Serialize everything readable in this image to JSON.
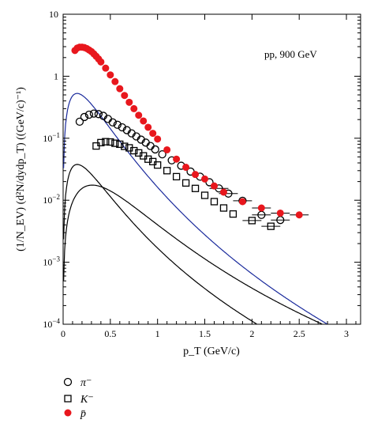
{
  "chart_data": {
    "type": "scatter",
    "annotation": "pp, 900 GeV",
    "xlabel": "p_T (GeV/c)",
    "ylabel": "(1/N_EV) (d²N/dydp_T) ((GeV/c)⁻¹)",
    "x_range": [
      0,
      3.15
    ],
    "y_range": [
      0.0001,
      10
    ],
    "y_scale": "log",
    "x_ticks": [
      "0",
      "0.5",
      "1",
      "1.5",
      "2",
      "2.5",
      "3"
    ],
    "x_tick_values": [
      0,
      0.5,
      1,
      1.5,
      2,
      2.5,
      3
    ],
    "y_tick_values": [
      0.0001,
      0.001,
      0.01,
      0.1,
      1,
      10
    ],
    "y_ticks": [
      {
        "base": "10",
        "exp": "−4"
      },
      {
        "base": "10",
        "exp": "−3"
      },
      {
        "base": "10",
        "exp": "−2"
      },
      {
        "base": "10",
        "exp": "−1"
      },
      {
        "base": "1",
        "exp": ""
      },
      {
        "base": "10",
        "exp": ""
      }
    ],
    "grid": false,
    "legend_position": "bottom-left",
    "series": [
      {
        "name": "π⁻",
        "marker": "open-circle",
        "color": "#000000",
        "x": [
          0.175,
          0.225,
          0.275,
          0.325,
          0.375,
          0.425,
          0.475,
          0.525,
          0.575,
          0.625,
          0.675,
          0.725,
          0.775,
          0.825,
          0.875,
          0.925,
          0.975,
          1.05,
          1.15,
          1.25,
          1.35,
          1.45,
          1.55,
          1.65,
          1.75,
          1.9,
          2.1,
          2.3
        ],
        "y": [
          0.185,
          0.22,
          0.24,
          0.25,
          0.245,
          0.23,
          0.205,
          0.18,
          0.165,
          0.15,
          0.135,
          0.12,
          0.107,
          0.095,
          0.085,
          0.075,
          0.066,
          0.055,
          0.044,
          0.036,
          0.029,
          0.024,
          0.0195,
          0.0155,
          0.0128,
          0.0098,
          0.0058,
          0.0048
        ],
        "xerr_from": 1.6,
        "curve": {
          "A": 0.47,
          "T": 0.1,
          "n": 6.9,
          "m": 0.14
        }
      },
      {
        "name": "K⁻",
        "marker": "open-square",
        "color": "#000000",
        "x": [
          0.35,
          0.4,
          0.45,
          0.5,
          0.55,
          0.6,
          0.65,
          0.7,
          0.75,
          0.8,
          0.85,
          0.9,
          0.95,
          1.0,
          1.1,
          1.2,
          1.3,
          1.4,
          1.5,
          1.6,
          1.7,
          1.8,
          2.0,
          2.2
        ],
        "y": [
          0.075,
          0.085,
          0.088,
          0.087,
          0.083,
          0.08,
          0.074,
          0.07,
          0.063,
          0.058,
          0.052,
          0.046,
          0.042,
          0.037,
          0.03,
          0.024,
          0.019,
          0.0155,
          0.012,
          0.0095,
          0.0075,
          0.006,
          0.0047,
          0.0038
        ],
        "xerr_from": 1.9,
        "curve": {
          "A": 0.1,
          "T": 0.15,
          "n": 6.6,
          "m": 0.494
        }
      },
      {
        "name": "p̄",
        "marker": "filled-circle",
        "color": "#e8171d",
        "x": [
          0.125,
          0.15,
          0.175,
          0.2,
          0.225,
          0.25,
          0.275,
          0.3,
          0.325,
          0.35,
          0.375,
          0.4,
          0.45,
          0.5,
          0.55,
          0.6,
          0.65,
          0.7,
          0.75,
          0.8,
          0.85,
          0.9,
          0.95,
          1.0,
          1.1,
          1.2,
          1.3,
          1.4,
          1.5,
          1.6,
          1.7,
          1.9,
          2.1,
          2.3,
          2.5
        ],
        "y": [
          2.6,
          2.85,
          2.95,
          2.95,
          2.9,
          2.8,
          2.65,
          2.5,
          2.3,
          2.1,
          1.9,
          1.7,
          1.35,
          1.05,
          0.82,
          0.63,
          0.49,
          0.38,
          0.3,
          0.235,
          0.19,
          0.15,
          0.12,
          0.097,
          0.065,
          0.046,
          0.034,
          0.026,
          0.022,
          0.017,
          0.0135,
          0.0095,
          0.0075,
          0.0062,
          0.0058
        ],
        "xerr_from": 2.0,
        "curve": {
          "A": 6.6,
          "T": 0.1,
          "n": 8.6,
          "m": 0.14
        },
        "curve_color": "#1a2a9c"
      }
    ]
  }
}
